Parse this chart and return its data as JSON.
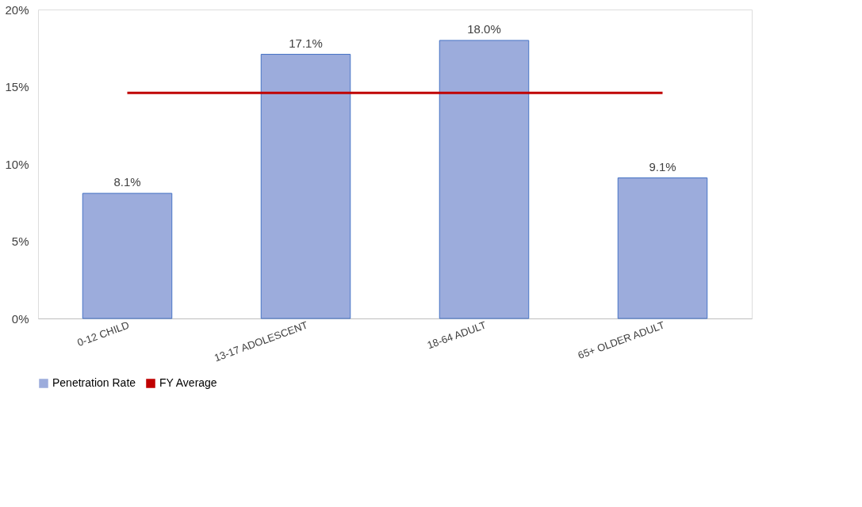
{
  "chart_data": {
    "type": "bar",
    "categories": [
      "0-12 CHILD",
      "13-17 ADOLESCENT",
      "18-64 ADULT",
      "65+ OLDER ADULT"
    ],
    "series": [
      {
        "name": "Penetration Rate",
        "color": "#9cacdc",
        "values": [
          8.1,
          17.1,
          18.0,
          9.1
        ],
        "value_labels": [
          "8.1%",
          "17.1%",
          "18.0%",
          "9.1%"
        ]
      },
      {
        "name": "FY Average",
        "type": "line",
        "color": "#c00000",
        "values": [
          14.6,
          14.6,
          14.6,
          14.6
        ]
      }
    ],
    "ylim": [
      0,
      20
    ],
    "yticks": [
      {
        "value": 0,
        "label": "0%"
      },
      {
        "value": 5,
        "label": "5%"
      },
      {
        "value": 10,
        "label": "10%"
      },
      {
        "value": 15,
        "label": "15%"
      },
      {
        "value": 20,
        "label": "20%"
      }
    ],
    "grid": false,
    "legend": "bottom"
  }
}
